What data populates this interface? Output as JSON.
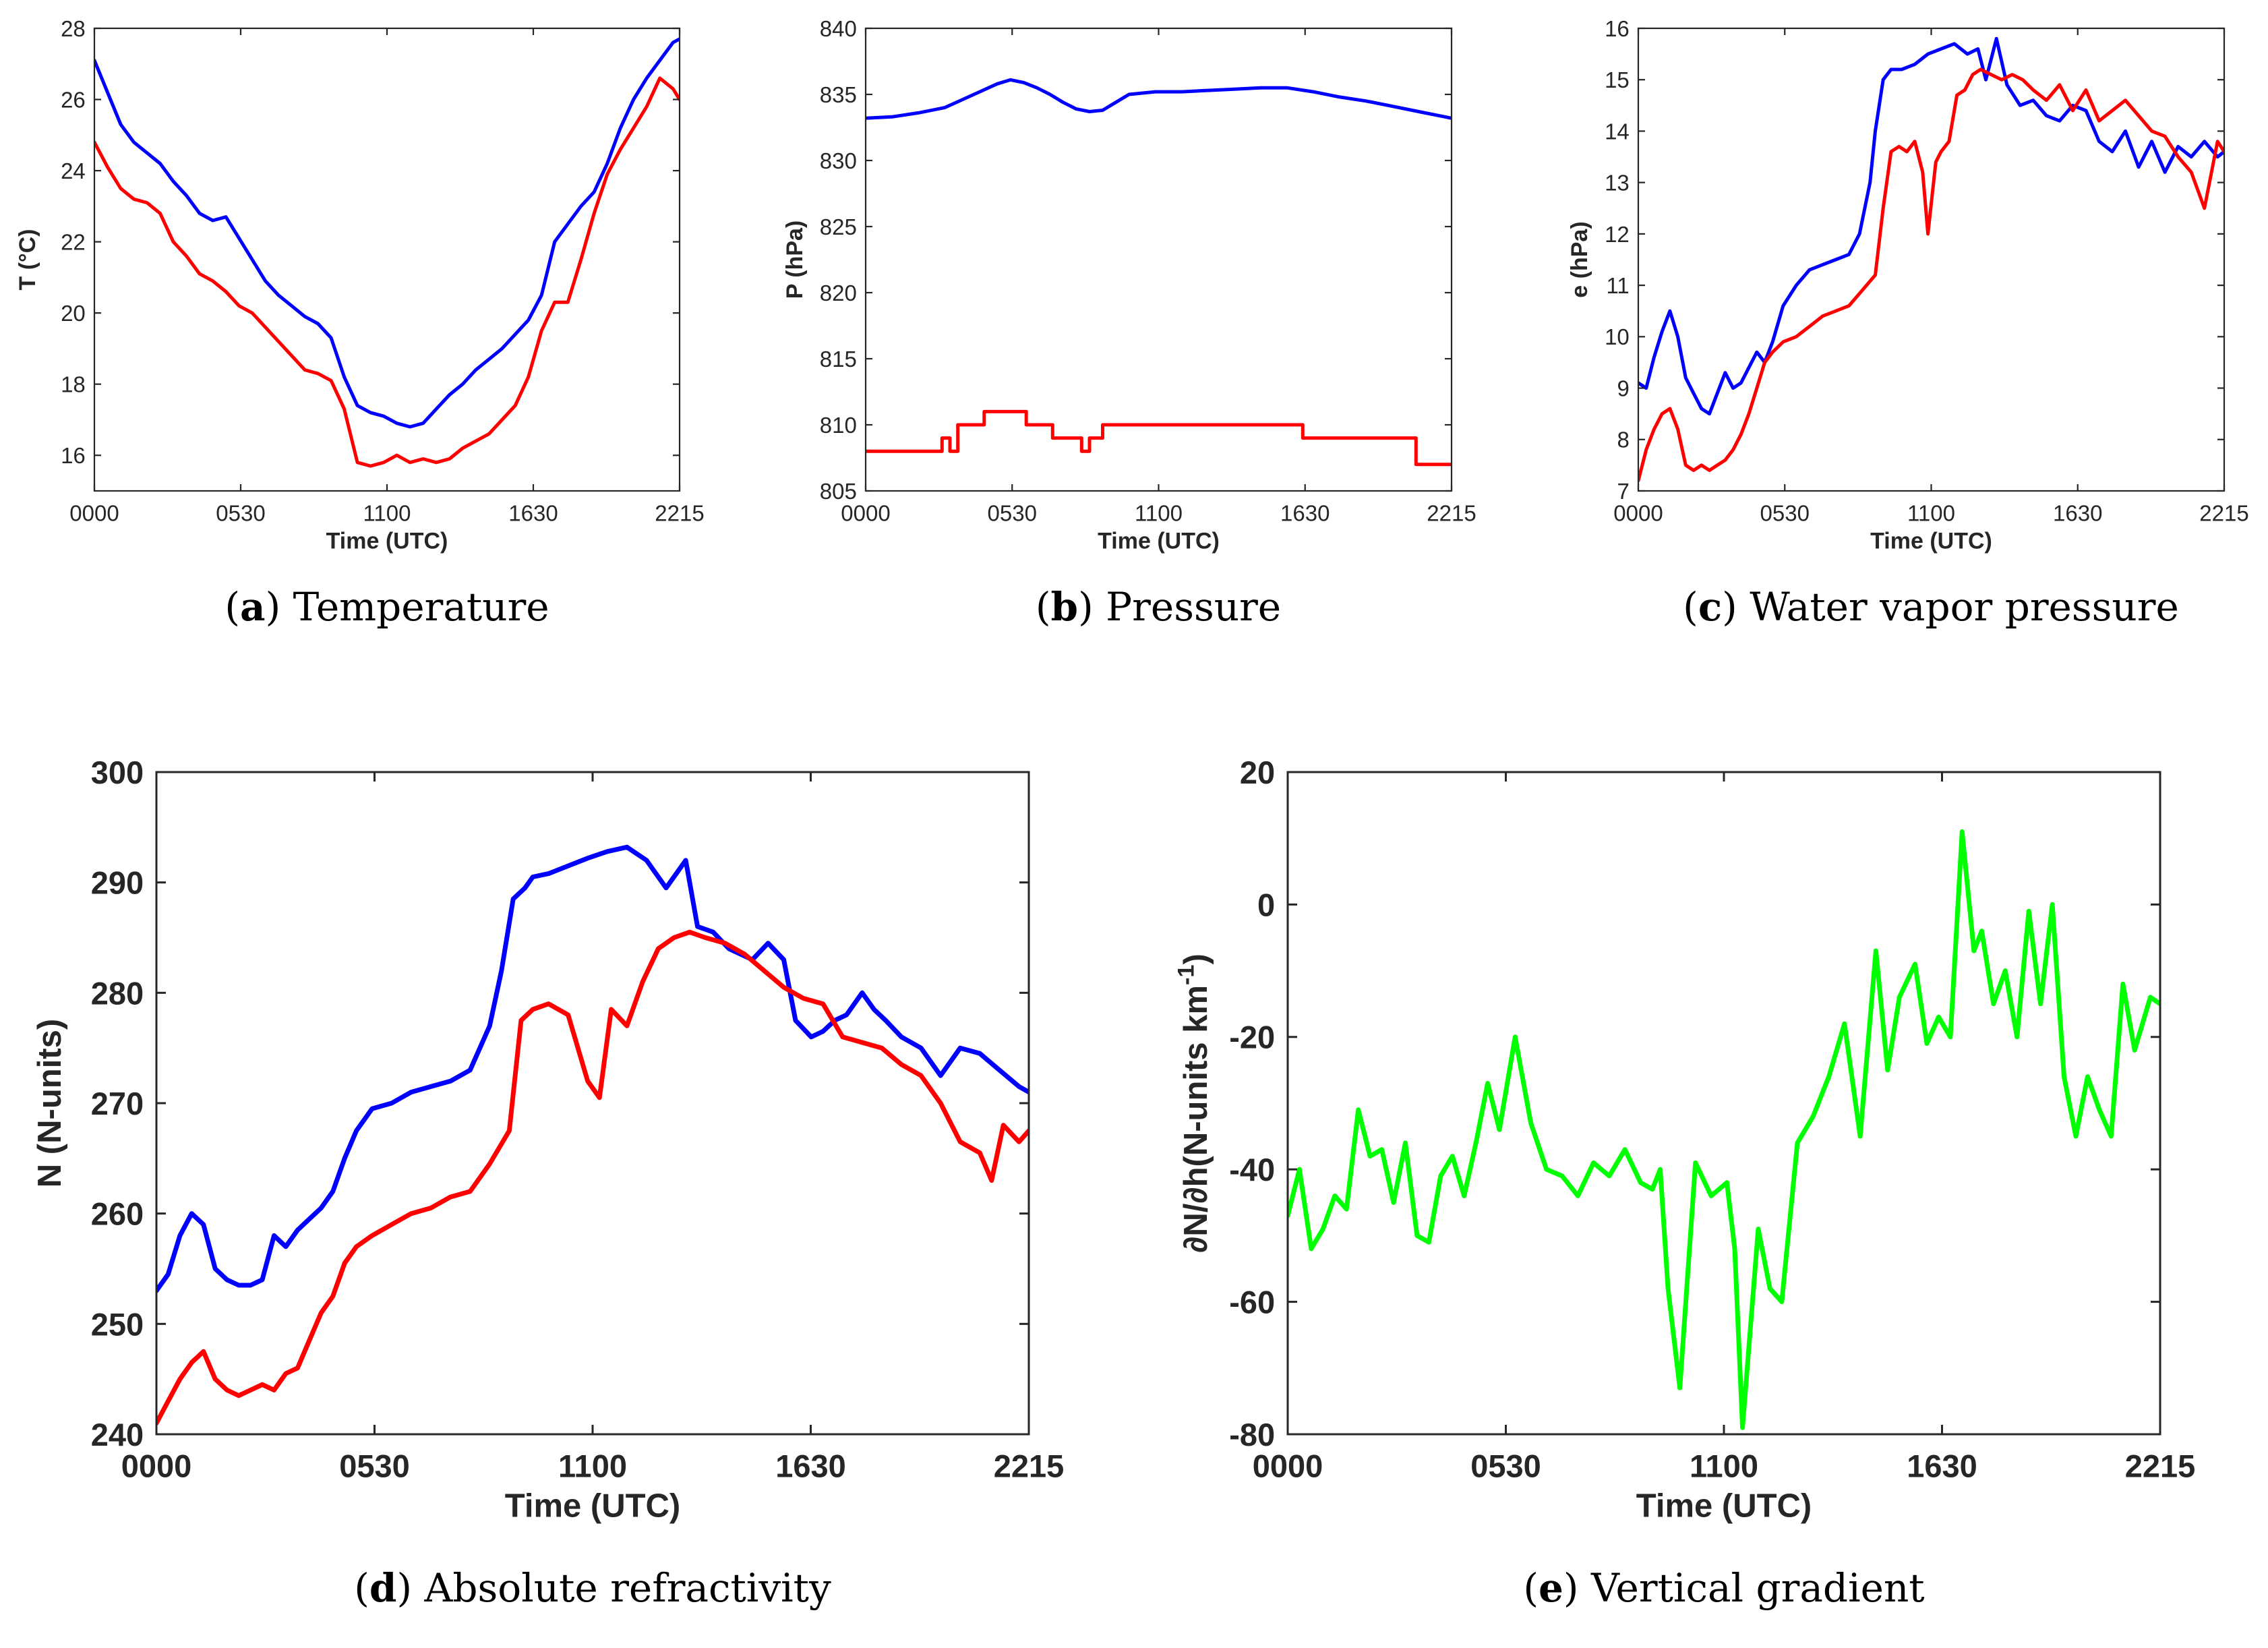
{
  "figure": {
    "panels": [
      "a",
      "b",
      "c",
      "d",
      "e"
    ]
  },
  "chart_data": [
    {
      "id": "a",
      "type": "line",
      "caption_letter": "a",
      "caption_text": "Temperature",
      "xlabel": "Time (UTC)",
      "ylabel": "T (°C)",
      "x_ticks": [
        "0000",
        "0530",
        "1100",
        "1630",
        "2215"
      ],
      "x_range_hours": [
        0,
        22.25
      ],
      "ylim": [
        15,
        28
      ],
      "y_ticks": [
        16,
        18,
        20,
        22,
        24,
        26,
        28
      ],
      "series": [
        {
          "name": "blue",
          "color": "#0000ff",
          "x": [
            0,
            0.5,
            1,
            1.5,
            2,
            2.5,
            3,
            3.5,
            4,
            4.5,
            5,
            5.5,
            6,
            6.5,
            7,
            7.5,
            8,
            8.5,
            9,
            9.5,
            10,
            10.5,
            11,
            11.5,
            12,
            12.5,
            13,
            13.5,
            14,
            14.5,
            15,
            15.5,
            16,
            16.5,
            17,
            17.5,
            18,
            18.5,
            19,
            19.5,
            20,
            20.5,
            21,
            21.5,
            22,
            22.25
          ],
          "y": [
            27.1,
            26.2,
            25.3,
            24.8,
            24.5,
            24.2,
            23.7,
            23.3,
            22.8,
            22.6,
            22.7,
            22.1,
            21.5,
            20.9,
            20.5,
            20.2,
            19.9,
            19.7,
            19.3,
            18.2,
            17.4,
            17.2,
            17.1,
            16.9,
            16.8,
            16.9,
            17.3,
            17.7,
            18.0,
            18.4,
            18.7,
            19.0,
            19.4,
            19.8,
            20.5,
            22.0,
            22.5,
            23.0,
            23.4,
            24.2,
            25.2,
            26.0,
            26.6,
            27.1,
            27.6,
            27.7
          ]
        },
        {
          "name": "red",
          "color": "#ff0000",
          "x": [
            0,
            0.5,
            1,
            1.5,
            2,
            2.5,
            3,
            3.5,
            4,
            4.5,
            5,
            5.5,
            6,
            6.5,
            7,
            7.5,
            8,
            8.5,
            9,
            9.5,
            10,
            10.5,
            11,
            11.5,
            12,
            12.5,
            13,
            13.5,
            14,
            14.5,
            15,
            15.5,
            16,
            16.5,
            17,
            17.5,
            18,
            18.5,
            19,
            19.5,
            20,
            20.5,
            21,
            21.5,
            22,
            22.25
          ],
          "y": [
            24.8,
            24.1,
            23.5,
            23.2,
            23.1,
            22.8,
            22.0,
            21.6,
            21.1,
            20.9,
            20.6,
            20.2,
            20.0,
            19.6,
            19.2,
            18.8,
            18.4,
            18.3,
            18.1,
            17.3,
            15.8,
            15.7,
            15.8,
            16.0,
            15.8,
            15.9,
            15.8,
            15.9,
            16.2,
            16.4,
            16.6,
            17.0,
            17.4,
            18.2,
            19.5,
            20.3,
            20.3,
            21.5,
            22.8,
            23.9,
            24.6,
            25.2,
            25.8,
            26.6,
            26.3,
            26.0
          ]
        }
      ]
    },
    {
      "id": "b",
      "type": "line",
      "caption_letter": "b",
      "caption_text": "Pressure",
      "xlabel": "Time (UTC)",
      "ylabel": "P (hPa)",
      "x_ticks": [
        "0000",
        "0530",
        "1100",
        "1630",
        "2215"
      ],
      "x_range_hours": [
        0,
        22.25
      ],
      "ylim": [
        805,
        840
      ],
      "y_ticks": [
        805,
        810,
        815,
        820,
        825,
        830,
        835,
        840
      ],
      "series": [
        {
          "name": "blue",
          "color": "#0000ff",
          "x": [
            0,
            1,
            2,
            3,
            4,
            5,
            5.5,
            6,
            6.5,
            7,
            7.5,
            8,
            8.5,
            9,
            9.5,
            10,
            11,
            12,
            13,
            14,
            15,
            16,
            17,
            18,
            19,
            20,
            21,
            22,
            22.25
          ],
          "y": [
            833.2,
            833.3,
            833.6,
            834.0,
            834.9,
            835.8,
            836.1,
            835.9,
            835.5,
            835.0,
            834.4,
            833.9,
            833.7,
            833.8,
            834.4,
            835.0,
            835.2,
            835.2,
            835.3,
            835.4,
            835.5,
            835.5,
            835.2,
            834.8,
            834.5,
            834.1,
            833.7,
            833.3,
            833.2
          ]
        },
        {
          "name": "red",
          "color": "#ff0000",
          "x": [
            0,
            2.9,
            2.9,
            3.2,
            3.2,
            3.5,
            3.5,
            4.5,
            4.5,
            6.1,
            6.1,
            7.1,
            7.1,
            8.2,
            8.2,
            8.5,
            8.5,
            9.0,
            9.0,
            11.0,
            11.0,
            16.6,
            16.6,
            20.9,
            20.9,
            22.25
          ],
          "y": [
            808,
            808,
            809,
            809,
            808,
            808,
            810,
            810,
            811,
            811,
            810,
            810,
            809,
            809,
            808,
            808,
            809,
            809,
            810,
            810,
            810,
            810,
            809,
            809,
            807,
            807
          ]
        }
      ]
    },
    {
      "id": "c",
      "type": "line",
      "caption_letter": "c",
      "caption_text": "Water vapor pressure",
      "xlabel": "Time (UTC)",
      "ylabel": "e (hPa)",
      "x_ticks": [
        "0000",
        "0530",
        "1100",
        "1630",
        "2215"
      ],
      "x_range_hours": [
        0,
        22.25
      ],
      "ylim": [
        7,
        16
      ],
      "y_ticks": [
        7,
        8,
        9,
        10,
        11,
        12,
        13,
        14,
        15,
        16
      ],
      "series": [
        {
          "name": "blue",
          "color": "#0000ff",
          "x": [
            0,
            0.3,
            0.6,
            0.9,
            1.2,
            1.5,
            1.8,
            2.1,
            2.4,
            2.7,
            3.0,
            3.3,
            3.6,
            3.9,
            4.2,
            4.5,
            4.8,
            5.1,
            5.5,
            6.0,
            6.5,
            7.0,
            7.5,
            8.0,
            8.4,
            8.8,
            9.0,
            9.3,
            9.6,
            10.0,
            10.5,
            11.0,
            11.5,
            12.0,
            12.5,
            12.9,
            13.2,
            13.6,
            14.0,
            14.5,
            15.0,
            15.5,
            16.0,
            16.5,
            17.0,
            17.5,
            18.0,
            18.5,
            19.0,
            19.5,
            20.0,
            20.5,
            21.0,
            21.5,
            22.0,
            22.25
          ],
          "y": [
            9.1,
            9.0,
            9.6,
            10.1,
            10.5,
            10.0,
            9.2,
            8.9,
            8.6,
            8.5,
            8.9,
            9.3,
            9.0,
            9.1,
            9.4,
            9.7,
            9.5,
            9.9,
            10.6,
            11.0,
            11.3,
            11.4,
            11.5,
            11.6,
            12.0,
            13.0,
            14.0,
            15.0,
            15.2,
            15.2,
            15.3,
            15.5,
            15.6,
            15.7,
            15.5,
            15.6,
            15.0,
            15.8,
            14.9,
            14.5,
            14.6,
            14.3,
            14.2,
            14.5,
            14.4,
            13.8,
            13.6,
            14.0,
            13.3,
            13.8,
            13.2,
            13.7,
            13.5,
            13.8,
            13.5,
            13.6
          ]
        },
        {
          "name": "red",
          "color": "#ff0000",
          "x": [
            0,
            0.3,
            0.6,
            0.9,
            1.2,
            1.5,
            1.8,
            2.1,
            2.4,
            2.7,
            3.0,
            3.3,
            3.6,
            3.9,
            4.2,
            4.5,
            4.8,
            5.1,
            5.5,
            6.0,
            6.5,
            7.0,
            7.5,
            8.0,
            8.5,
            9.0,
            9.3,
            9.6,
            9.9,
            10.2,
            10.5,
            10.8,
            11.0,
            11.3,
            11.5,
            11.8,
            12.1,
            12.4,
            12.7,
            13.0,
            13.4,
            13.8,
            14.2,
            14.6,
            15.0,
            15.5,
            16.0,
            16.5,
            17.0,
            17.5,
            18.0,
            18.5,
            19.0,
            19.5,
            20.0,
            20.5,
            21.0,
            21.5,
            22.0,
            22.25
          ],
          "y": [
            7.2,
            7.8,
            8.2,
            8.5,
            8.6,
            8.2,
            7.5,
            7.4,
            7.5,
            7.4,
            7.5,
            7.6,
            7.8,
            8.1,
            8.5,
            9.0,
            9.5,
            9.7,
            9.9,
            10.0,
            10.2,
            10.4,
            10.5,
            10.6,
            10.9,
            11.2,
            12.5,
            13.6,
            13.7,
            13.6,
            13.8,
            13.2,
            12.0,
            13.4,
            13.6,
            13.8,
            14.7,
            14.8,
            15.1,
            15.2,
            15.1,
            15.0,
            15.1,
            15.0,
            14.8,
            14.6,
            14.9,
            14.4,
            14.8,
            14.2,
            14.4,
            14.6,
            14.3,
            14.0,
            13.9,
            13.5,
            13.2,
            12.5,
            13.8,
            13.6
          ]
        }
      ]
    },
    {
      "id": "d",
      "type": "line",
      "caption_letter": "d",
      "caption_text": "Absolute refractivity",
      "xlabel": "Time (UTC)",
      "ylabel": "N (N-units)",
      "x_ticks": [
        "0000",
        "0530",
        "1100",
        "1630",
        "2215"
      ],
      "x_range_hours": [
        0,
        22.25
      ],
      "ylim": [
        240,
        300
      ],
      "y_ticks": [
        240,
        250,
        260,
        270,
        280,
        290,
        300
      ],
      "series": [
        {
          "name": "blue",
          "color": "#0000ff",
          "x": [
            0,
            0.3,
            0.6,
            0.9,
            1.2,
            1.5,
            1.8,
            2.1,
            2.4,
            2.7,
            3.0,
            3.3,
            3.6,
            3.9,
            4.2,
            4.5,
            4.8,
            5.1,
            5.5,
            6.0,
            6.5,
            7.0,
            7.5,
            8.0,
            8.5,
            8.8,
            9.1,
            9.4,
            9.6,
            10.0,
            10.5,
            11.0,
            11.5,
            12.0,
            12.5,
            13.0,
            13.5,
            13.8,
            14.2,
            14.6,
            14.9,
            15.2,
            15.6,
            16.0,
            16.3,
            16.7,
            17.0,
            17.3,
            17.6,
            18.0,
            18.3,
            18.6,
            19.0,
            19.5,
            20.0,
            20.5,
            21.0,
            21.5,
            22.0,
            22.25
          ],
          "y": [
            253.0,
            254.5,
            258.0,
            260.0,
            259.0,
            255.0,
            254.0,
            253.5,
            253.5,
            254.0,
            258.0,
            257.0,
            258.5,
            259.5,
            260.5,
            262.0,
            265.0,
            267.5,
            269.5,
            270.0,
            271.0,
            271.5,
            272.0,
            273.0,
            277.0,
            282.0,
            288.5,
            289.5,
            290.5,
            290.8,
            291.5,
            292.2,
            292.8,
            293.2,
            292.0,
            289.5,
            292.0,
            286.0,
            285.5,
            284.0,
            283.5,
            283.0,
            284.5,
            283.0,
            277.5,
            276.0,
            276.5,
            277.5,
            278.0,
            280.0,
            278.5,
            277.5,
            276.0,
            275.0,
            272.5,
            275.0,
            274.5,
            273.0,
            271.5,
            271.0
          ]
        },
        {
          "name": "red",
          "color": "#ff0000",
          "x": [
            0,
            0.3,
            0.6,
            0.9,
            1.2,
            1.5,
            1.8,
            2.1,
            2.4,
            2.7,
            3.0,
            3.3,
            3.6,
            3.9,
            4.2,
            4.5,
            4.8,
            5.1,
            5.5,
            6.0,
            6.5,
            7.0,
            7.5,
            8.0,
            8.5,
            9.0,
            9.3,
            9.6,
            10.0,
            10.5,
            11.0,
            11.3,
            11.6,
            12.0,
            12.4,
            12.8,
            13.2,
            13.6,
            14.0,
            14.5,
            15.0,
            15.5,
            16.0,
            16.5,
            17.0,
            17.5,
            18.0,
            18.5,
            19.0,
            19.5,
            20.0,
            20.5,
            21.0,
            21.3,
            21.6,
            22.0,
            22.25
          ],
          "y": [
            241.0,
            243.0,
            245.0,
            246.5,
            247.5,
            245.0,
            244.0,
            243.5,
            244.0,
            244.5,
            244.0,
            245.5,
            246.0,
            248.5,
            251.0,
            252.5,
            255.5,
            257.0,
            258.0,
            259.0,
            260.0,
            260.5,
            261.5,
            262.0,
            264.5,
            267.5,
            277.5,
            278.5,
            279.0,
            278.0,
            272.0,
            270.5,
            278.5,
            277.0,
            281.0,
            284.0,
            285.0,
            285.5,
            285.0,
            284.5,
            283.5,
            282.0,
            280.5,
            279.5,
            279.0,
            276.0,
            275.5,
            275.0,
            273.5,
            272.5,
            270.0,
            266.5,
            265.5,
            263.0,
            268.0,
            266.5,
            267.5
          ]
        }
      ]
    },
    {
      "id": "e",
      "type": "line",
      "caption_letter": "e",
      "caption_text": "Vertical gradient",
      "xlabel": "Time (UTC)",
      "ylabel": "∂N/∂h(N-units km",
      "ylabel_sup": "-1",
      "ylabel_end": ")",
      "x_ticks": [
        "0000",
        "0530",
        "1100",
        "1630",
        "2215"
      ],
      "x_range_hours": [
        0,
        22.25
      ],
      "ylim": [
        -80,
        20
      ],
      "y_ticks": [
        -80,
        -60,
        -40,
        -20,
        0,
        20
      ],
      "series": [
        {
          "name": "gradient",
          "color": "#00ff00",
          "x": [
            0,
            0.3,
            0.6,
            0.9,
            1.2,
            1.5,
            1.8,
            2.1,
            2.4,
            2.7,
            3.0,
            3.3,
            3.6,
            3.9,
            4.2,
            4.5,
            4.8,
            5.1,
            5.4,
            5.8,
            6.2,
            6.6,
            7.0,
            7.4,
            7.8,
            8.2,
            8.6,
            9.0,
            9.3,
            9.5,
            9.7,
            10.0,
            10.4,
            10.8,
            11.2,
            11.4,
            11.6,
            12.0,
            12.3,
            12.6,
            13.0,
            13.4,
            13.8,
            14.2,
            14.6,
            15.0,
            15.3,
            15.6,
            16.0,
            16.3,
            16.6,
            16.9,
            17.2,
            17.5,
            17.7,
            18.0,
            18.3,
            18.6,
            18.9,
            19.2,
            19.5,
            19.8,
            20.1,
            20.4,
            20.7,
            21.0,
            21.3,
            21.6,
            22.0,
            22.25
          ],
          "y": [
            -47,
            -40,
            -52,
            -49,
            -44,
            -46,
            -31,
            -38,
            -37,
            -45,
            -36,
            -50,
            -51,
            -41,
            -38,
            -44,
            -36,
            -27,
            -34,
            -20,
            -33,
            -40,
            -41,
            -44,
            -39,
            -41,
            -37,
            -42,
            -43,
            -40,
            -58,
            -73,
            -39,
            -44,
            -42,
            -52,
            -79,
            -49,
            -58,
            -60,
            -36,
            -32,
            -26,
            -18,
            -35,
            -7,
            -25,
            -14,
            -9,
            -21,
            -17,
            -20,
            11,
            -7,
            -4,
            -15,
            -10,
            -20,
            -1,
            -15,
            0,
            -26,
            -35,
            -26,
            -31,
            -35,
            -12,
            -22,
            -14,
            -15
          ]
        }
      ]
    }
  ]
}
